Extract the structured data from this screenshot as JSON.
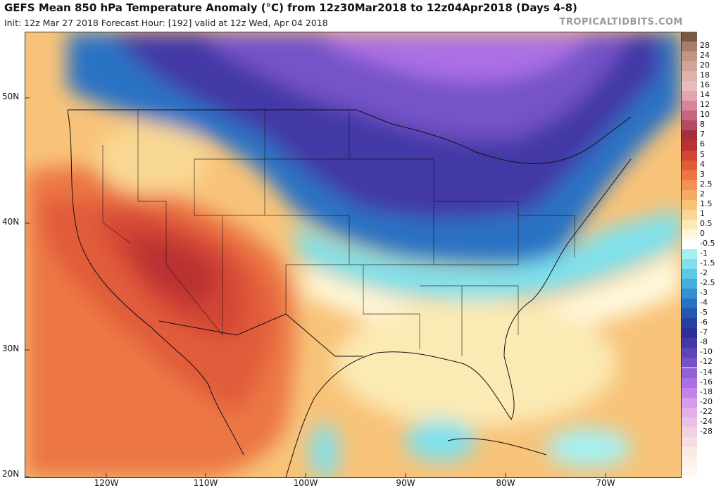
{
  "header": {
    "title": "GEFS Mean 850 hPa Temperature Anomaly (°C) from 12z30Mar2018 to 12z04Apr2018 (Days 4-8)",
    "subtitle": "Init: 12z Mar 27 2018   Forecast Hour: [192]   valid at 12z Wed, Apr 04 2018",
    "credit": "TROPICALTIDBITS.COM"
  },
  "axes": {
    "lat_labels": [
      "50N",
      "40N",
      "30N",
      "20N"
    ],
    "lon_labels": [
      "120W",
      "110W",
      "100W",
      "90W",
      "80W",
      "70W"
    ]
  },
  "colorbar": {
    "levels": [
      {
        "label": "",
        "color": "#7b5a45"
      },
      {
        "label": "28",
        "color": "#a87e6a"
      },
      {
        "label": "24",
        "color": "#c09683"
      },
      {
        "label": "20",
        "color": "#d0a598"
      },
      {
        "label": "18",
        "color": "#dcb4ab"
      },
      {
        "label": "16",
        "color": "#e6bdb7"
      },
      {
        "label": "14",
        "color": "#e6a3b0"
      },
      {
        "label": "12",
        "color": "#d7849a"
      },
      {
        "label": "10",
        "color": "#c66580"
      },
      {
        "label": "8",
        "color": "#b34a62"
      },
      {
        "label": "7",
        "color": "#a3303e"
      },
      {
        "label": "6",
        "color": "#b93232"
      },
      {
        "label": "5",
        "color": "#d34534"
      },
      {
        "label": "4",
        "color": "#e15b3b"
      },
      {
        "label": "3",
        "color": "#ec7744"
      },
      {
        "label": "2.5",
        "color": "#f39253"
      },
      {
        "label": "2",
        "color": "#f6ab62"
      },
      {
        "label": "1.5",
        "color": "#f8c379"
      },
      {
        "label": "1",
        "color": "#f9d893"
      },
      {
        "label": "0.5",
        "color": "#fbeab4"
      },
      {
        "label": "0",
        "color": "#fff8dc"
      },
      {
        "label": "-0.5",
        "color": "#ffffff"
      },
      {
        "label": "-1",
        "color": "#a6f0f2"
      },
      {
        "label": "-1.5",
        "color": "#7fe0ec"
      },
      {
        "label": "-2",
        "color": "#5fc8e6"
      },
      {
        "label": "-2.5",
        "color": "#46ade0"
      },
      {
        "label": "-3",
        "color": "#368fd3"
      },
      {
        "label": "-4",
        "color": "#2a72c4"
      },
      {
        "label": "-5",
        "color": "#2457b4"
      },
      {
        "label": "-6",
        "color": "#2540a4"
      },
      {
        "label": "-7",
        "color": "#2e2f99"
      },
      {
        "label": "-8",
        "color": "#4338a6"
      },
      {
        "label": "-10",
        "color": "#5c45b8"
      },
      {
        "label": "-12",
        "color": "#7552c8"
      },
      {
        "label": "-14",
        "color": "#9060d8"
      },
      {
        "label": "-16",
        "color": "#ab6fe4"
      },
      {
        "label": "-18",
        "color": "#c582ea"
      },
      {
        "label": "-20",
        "color": "#d89aec"
      },
      {
        "label": "-22",
        "color": "#e3afe9"
      },
      {
        "label": "-24",
        "color": "#ebc2e6"
      },
      {
        "label": "-28",
        "color": "#f0d2e2"
      },
      {
        "label": "",
        "color": "#f6dede"
      },
      {
        "label": "",
        "color": "#fbe9e3"
      },
      {
        "label": "",
        "color": "#fdf2e8"
      },
      {
        "label": "",
        "color": "#fef7ee"
      }
    ]
  },
  "palette": {
    "warm_dark": "#a3303e",
    "warm": "#d34534",
    "warm_light": "#f39253",
    "neutral": "#fff8dc",
    "cool_light": "#7fe0ec",
    "cool": "#2a72c4",
    "cold": "#4338a6",
    "very_cold": "#9060d8"
  }
}
